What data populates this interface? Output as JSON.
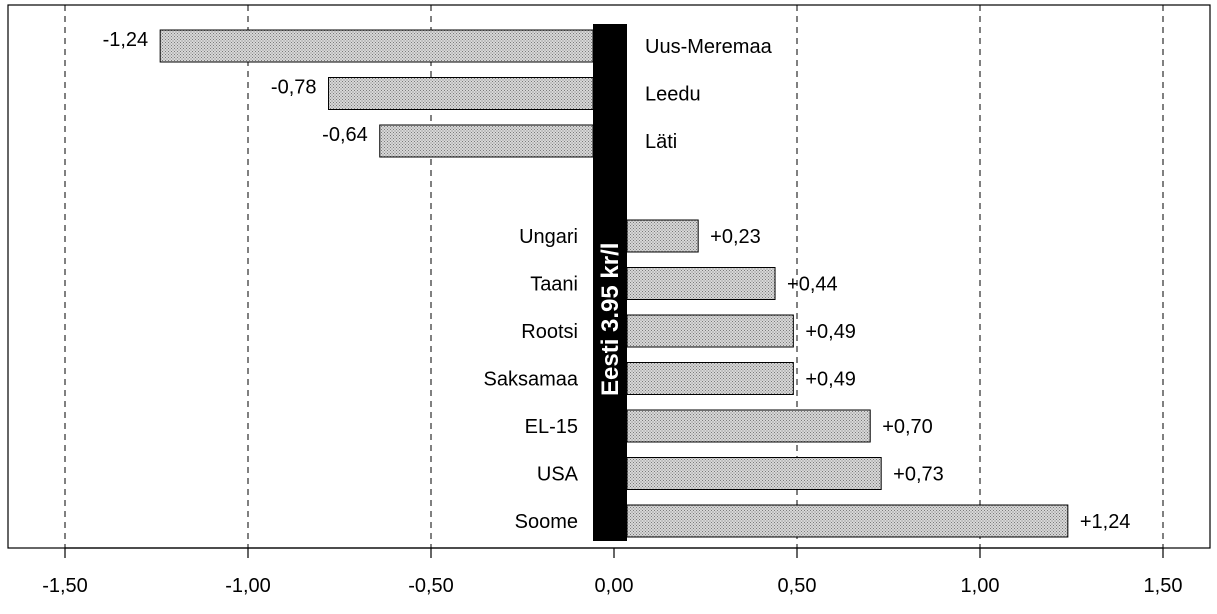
{
  "chart_data": {
    "type": "bar",
    "orientation": "horizontal",
    "baseline_label": "Eesti 3.95 kr/l",
    "categories": [
      "Uus-Meremaa",
      "Leedu",
      "Läti",
      "",
      "Ungari",
      "Taani",
      "Rootsi",
      "Saksamaa",
      "EL-15",
      "USA",
      "Soome"
    ],
    "values": [
      -1.24,
      -0.78,
      -0.64,
      null,
      0.23,
      0.44,
      0.49,
      0.49,
      0.7,
      0.73,
      1.24
    ],
    "value_labels": [
      "-1,24",
      "-0,78",
      "-0,64",
      "",
      "+0,23",
      "+0,44",
      "+0,49",
      "+0,49",
      "+0,70",
      "+0,73",
      "+1,24"
    ],
    "xlim": [
      -1.5,
      1.5
    ],
    "xticks": [
      -1.5,
      -1.0,
      -0.5,
      0.0,
      0.5,
      1.0,
      1.5
    ],
    "xtick_labels": [
      "-1,50",
      "-1,00",
      "-0,50",
      "0,00",
      "0,50",
      "1,00",
      "1,50"
    ],
    "grid": "vertical-dashed",
    "bar_fill": "dotted-gray",
    "colors": {
      "bar_fill": "#d8d8d8",
      "bar_dots": "#7a7a7a",
      "baseline": "#000000",
      "baseline_text": "#ffffff"
    }
  }
}
